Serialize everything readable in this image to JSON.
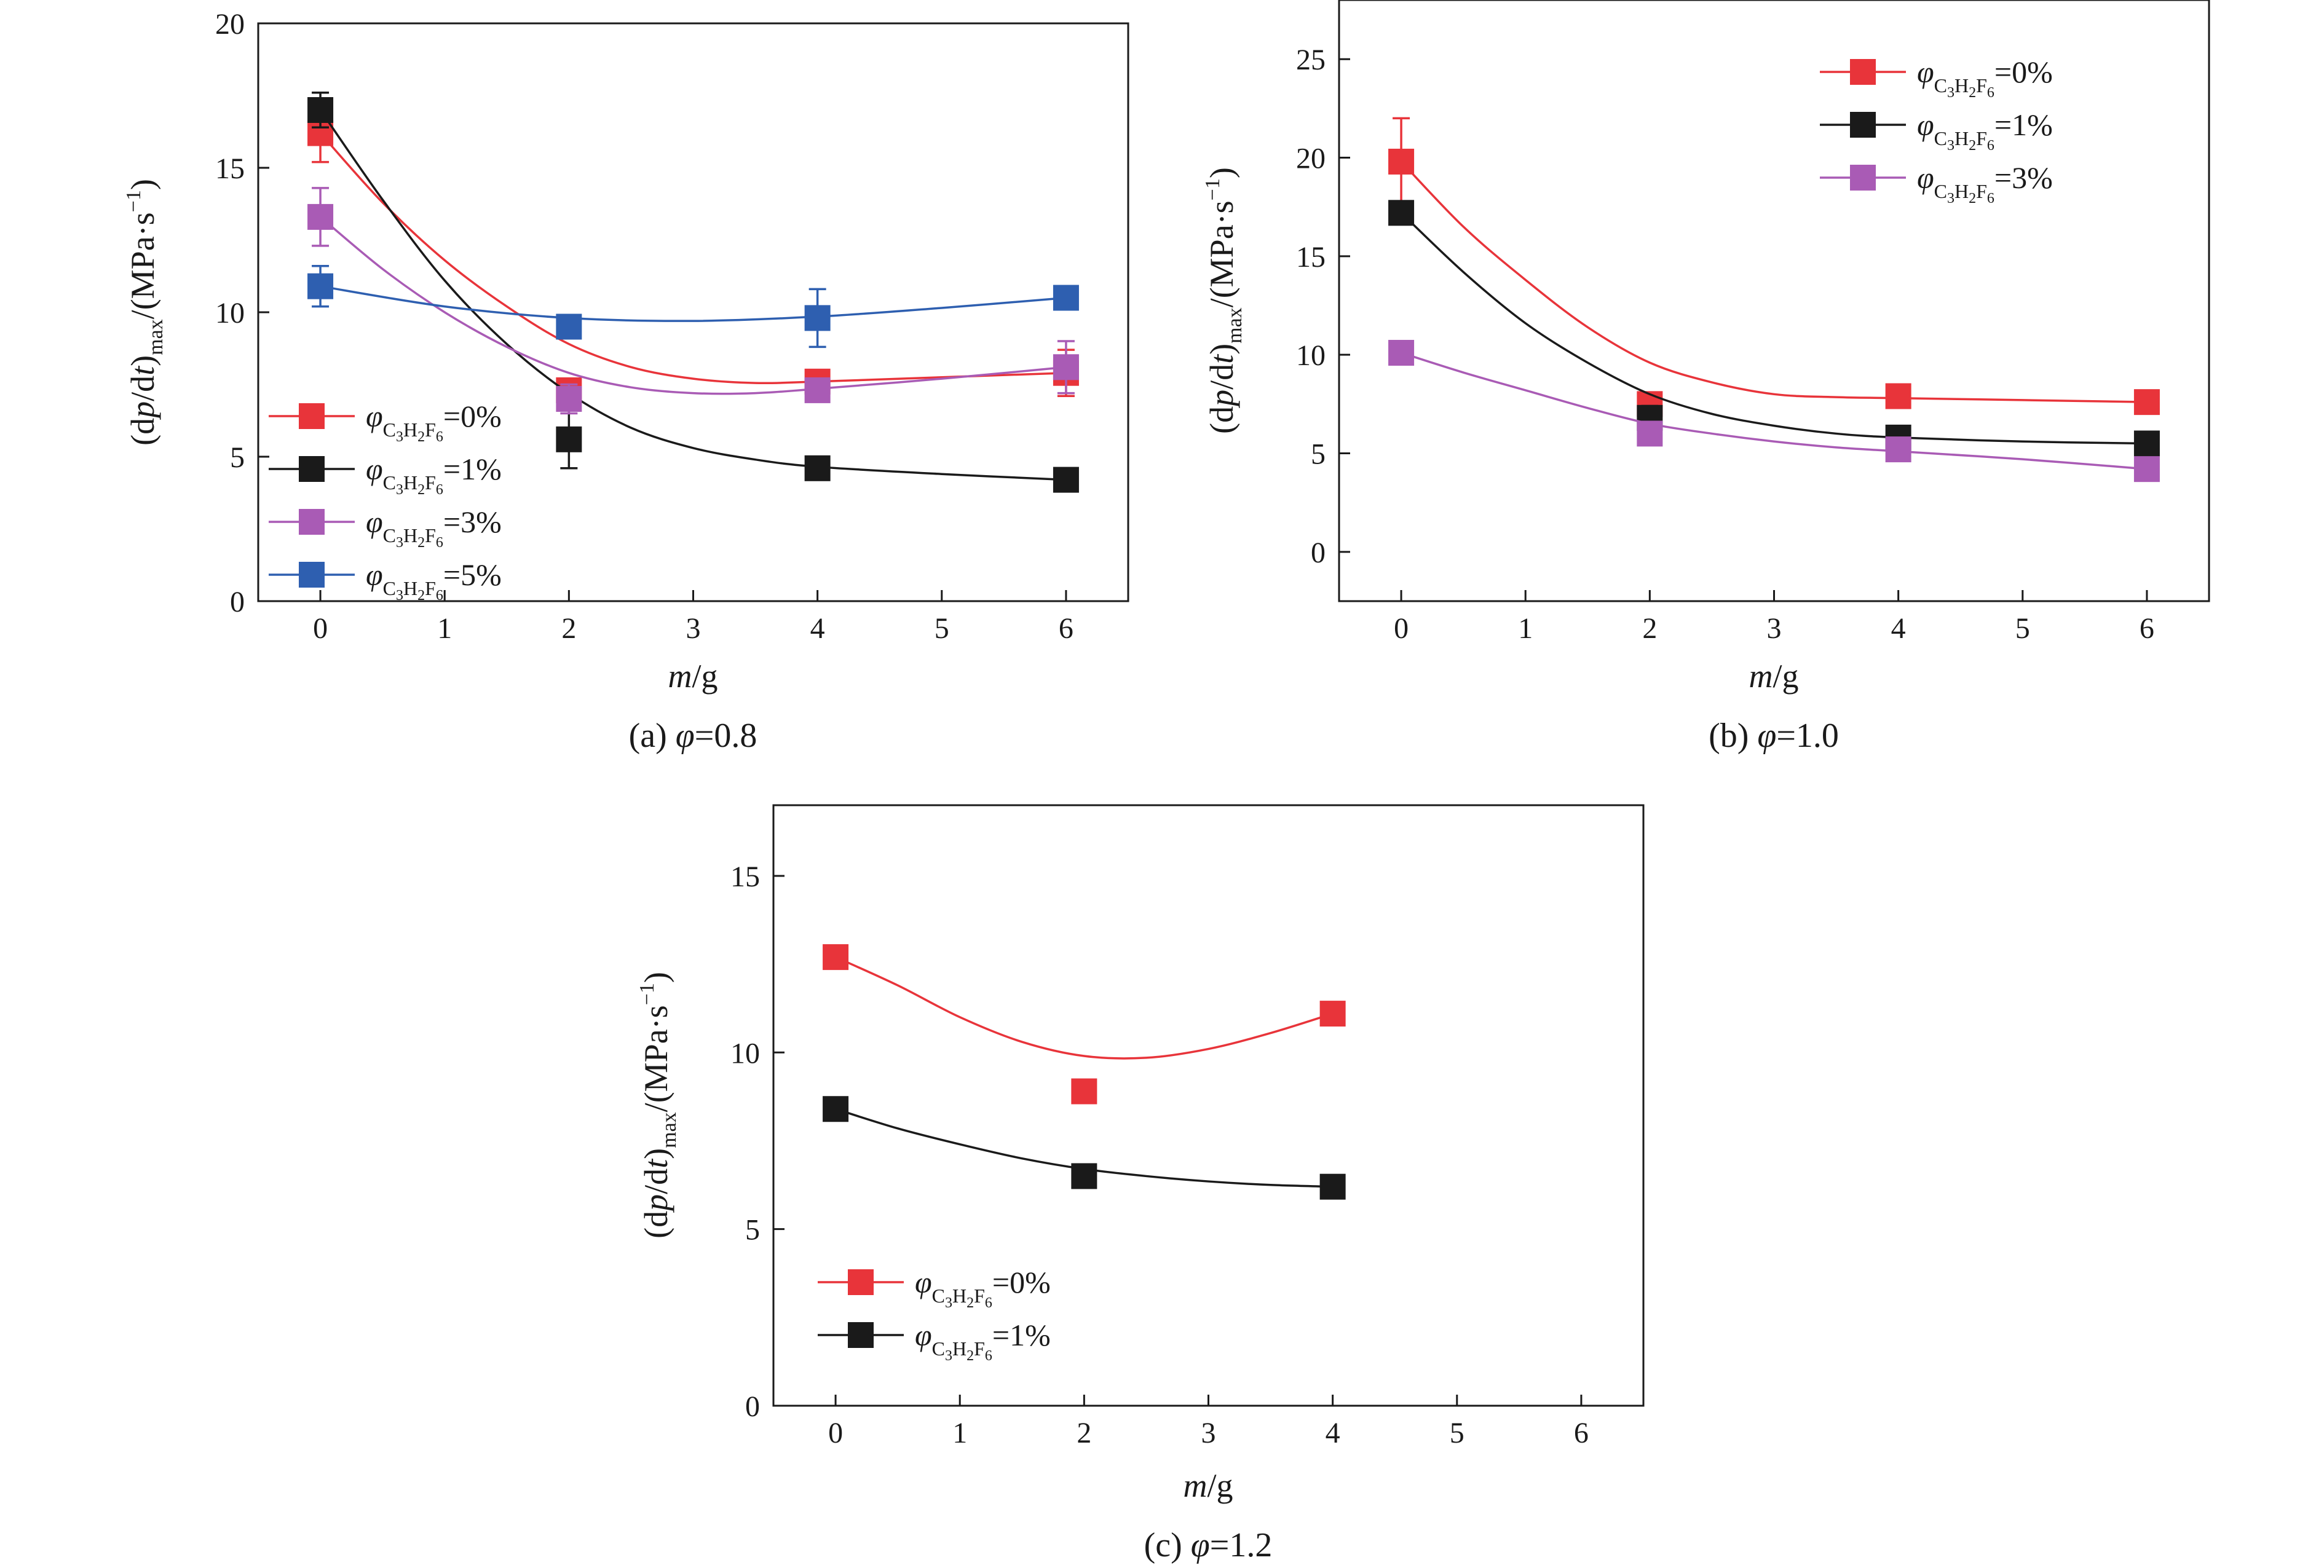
{
  "chart_data": [
    {
      "id": "a",
      "type": "line",
      "caption_prefix": "(a) ",
      "caption_var": "φ",
      "caption_value": "=0.8",
      "xlabel_var": "m",
      "xlabel_unit": "/g",
      "ylabel": "(dp/dt)max/(MPa·s−1)",
      "xlim": [
        -0.5,
        6.5
      ],
      "ylim": [
        0,
        20
      ],
      "xticks": [
        0,
        1,
        2,
        3,
        4,
        5,
        6
      ],
      "yticks": [
        0,
        5,
        10,
        15,
        20
      ],
      "legend_position": "lower-left",
      "series": [
        {
          "name": "φC3H2F6=0%",
          "label": "=0%",
          "color": "#e8343a",
          "x": [
            0,
            2,
            4,
            6
          ],
          "y": [
            16.2,
            7.3,
            7.6,
            7.9
          ],
          "err": [
            1.0,
            0.4,
            0.3,
            0.8
          ],
          "fit": [
            [
              0,
              16.2
            ],
            [
              0.5,
              13.8
            ],
            [
              1,
              11.8
            ],
            [
              1.5,
              10.2
            ],
            [
              2,
              8.9
            ],
            [
              2.5,
              8.1
            ],
            [
              3,
              7.7
            ],
            [
              3.5,
              7.55
            ],
            [
              4,
              7.6
            ],
            [
              5,
              7.75
            ],
            [
              6,
              7.9
            ]
          ]
        },
        {
          "name": "φC3H2F6=1%",
          "label": "=1%",
          "color": "#1a1a1a",
          "x": [
            0,
            2,
            4,
            6
          ],
          "y": [
            17.0,
            5.6,
            4.6,
            4.2
          ],
          "err": [
            0.6,
            1.0,
            0.3,
            0.1
          ],
          "fit": [
            [
              0,
              17.0
            ],
            [
              0.5,
              13.9
            ],
            [
              1,
              11.1
            ],
            [
              1.5,
              8.9
            ],
            [
              2,
              7.2
            ],
            [
              2.5,
              6.0
            ],
            [
              3,
              5.3
            ],
            [
              3.5,
              4.9
            ],
            [
              4,
              4.65
            ],
            [
              5,
              4.4
            ],
            [
              6,
              4.2
            ]
          ]
        },
        {
          "name": "φC3H2F6=3%",
          "label": "=3%",
          "color": "#a95bb5",
          "x": [
            0,
            2,
            4,
            6
          ],
          "y": [
            13.3,
            7.0,
            7.3,
            8.1
          ],
          "err": [
            1.0,
            0.5,
            0.4,
            0.9
          ],
          "fit": [
            [
              0,
              13.3
            ],
            [
              0.5,
              11.5
            ],
            [
              1,
              10.0
            ],
            [
              1.5,
              8.8
            ],
            [
              2,
              7.9
            ],
            [
              2.5,
              7.4
            ],
            [
              3,
              7.2
            ],
            [
              3.5,
              7.2
            ],
            [
              4,
              7.35
            ],
            [
              5,
              7.7
            ],
            [
              6,
              8.1
            ]
          ]
        },
        {
          "name": "φC3H2F6=5%",
          "label": "=5%",
          "color": "#2e5fb0",
          "x": [
            0,
            2,
            4,
            6
          ],
          "y": [
            10.9,
            9.5,
            9.8,
            10.5
          ],
          "err": [
            0.7,
            0.2,
            1.0,
            0.2
          ],
          "fit": [
            [
              0,
              10.9
            ],
            [
              1,
              10.2
            ],
            [
              2,
              9.8
            ],
            [
              3,
              9.7
            ],
            [
              4,
              9.85
            ],
            [
              5,
              10.15
            ],
            [
              6,
              10.5
            ]
          ]
        }
      ]
    },
    {
      "id": "b",
      "type": "line",
      "caption_prefix": "(b) ",
      "caption_var": "φ",
      "caption_value": "=1.0",
      "xlabel_var": "m",
      "xlabel_unit": "/g",
      "ylabel": "(dp/dt)max/(MPa·s−1)",
      "xlim": [
        -0.5,
        6.5
      ],
      "ylim": [
        -2.5,
        28
      ],
      "xticks": [
        0,
        1,
        2,
        3,
        4,
        5,
        6
      ],
      "yticks": [
        0,
        5,
        10,
        15,
        20,
        25
      ],
      "legend_position": "top-right",
      "series": [
        {
          "name": "φC3H2F6=0%",
          "label": "=0%",
          "color": "#e8343a",
          "x": [
            0,
            2,
            4,
            6
          ],
          "y": [
            19.8,
            7.5,
            7.9,
            7.6
          ],
          "err": [
            2.2,
            0.3,
            0.2,
            0.1
          ],
          "fit": [
            [
              0,
              19.8
            ],
            [
              0.5,
              16.5
            ],
            [
              1,
              13.8
            ],
            [
              1.5,
              11.4
            ],
            [
              2,
              9.6
            ],
            [
              2.5,
              8.6
            ],
            [
              3,
              8.0
            ],
            [
              3.5,
              7.85
            ],
            [
              4,
              7.8
            ],
            [
              5,
              7.7
            ],
            [
              6,
              7.6
            ]
          ]
        },
        {
          "name": "φC3H2F6=1%",
          "label": "=1%",
          "color": "#1a1a1a",
          "x": [
            0,
            2,
            4,
            6
          ],
          "y": [
            17.2,
            6.8,
            5.8,
            5.5
          ],
          "err": [
            0.3,
            0.6,
            0.3,
            0.2
          ],
          "fit": [
            [
              0,
              17.2
            ],
            [
              0.5,
              14.2
            ],
            [
              1,
              11.6
            ],
            [
              1.5,
              9.6
            ],
            [
              2,
              8.0
            ],
            [
              2.5,
              7.0
            ],
            [
              3,
              6.4
            ],
            [
              3.5,
              6.0
            ],
            [
              4,
              5.8
            ],
            [
              5,
              5.6
            ],
            [
              6,
              5.5
            ]
          ]
        },
        {
          "name": "φC3H2F6=3%",
          "label": "=3%",
          "color": "#a95bb5",
          "x": [
            0,
            2,
            4,
            6
          ],
          "y": [
            10.1,
            6.0,
            5.2,
            4.2
          ],
          "err": [
            0.2,
            0.4,
            0.2,
            0.2
          ],
          "fit": [
            [
              0,
              10.1
            ],
            [
              0.5,
              9.1
            ],
            [
              1,
              8.2
            ],
            [
              1.5,
              7.3
            ],
            [
              2,
              6.5
            ],
            [
              2.5,
              6.0
            ],
            [
              3,
              5.6
            ],
            [
              3.5,
              5.3
            ],
            [
              4,
              5.1
            ],
            [
              5,
              4.7
            ],
            [
              6,
              4.2
            ]
          ]
        }
      ]
    },
    {
      "id": "c",
      "type": "line",
      "caption_prefix": "(c) ",
      "caption_var": "φ",
      "caption_value": "=1.2",
      "xlabel_var": "m",
      "xlabel_unit": "/g",
      "ylabel": "(dp/dt)max/(MPa·s−1)",
      "xlim": [
        -0.5,
        6.5
      ],
      "ylim": [
        0,
        17
      ],
      "xticks": [
        0,
        1,
        2,
        3,
        4,
        5,
        6
      ],
      "yticks": [
        0,
        5,
        10,
        15
      ],
      "legend_position": "lower-left",
      "series": [
        {
          "name": "φC3H2F6=0%",
          "label": "=0%",
          "color": "#e8343a",
          "x": [
            0,
            2,
            4
          ],
          "y": [
            12.7,
            8.9,
            11.1
          ],
          "err": [
            0.1,
            0.3,
            0.1
          ],
          "fit": [
            [
              0,
              12.7
            ],
            [
              0.5,
              11.9
            ],
            [
              1,
              11.0
            ],
            [
              1.5,
              10.3
            ],
            [
              2,
              9.9
            ],
            [
              2.5,
              9.85
            ],
            [
              3,
              10.1
            ],
            [
              3.5,
              10.55
            ],
            [
              4,
              11.1
            ]
          ]
        },
        {
          "name": "φC3H2F6=1%",
          "label": "=1%",
          "color": "#1a1a1a",
          "x": [
            0,
            2,
            4
          ],
          "y": [
            8.4,
            6.5,
            6.2
          ],
          "err": [
            0.1,
            0.2,
            0.1
          ],
          "fit": [
            [
              0,
              8.4
            ],
            [
              0.5,
              7.85
            ],
            [
              1,
              7.4
            ],
            [
              1.5,
              7.0
            ],
            [
              2,
              6.7
            ],
            [
              2.5,
              6.5
            ],
            [
              3,
              6.35
            ],
            [
              3.5,
              6.25
            ],
            [
              4,
              6.2
            ]
          ]
        }
      ]
    }
  ]
}
